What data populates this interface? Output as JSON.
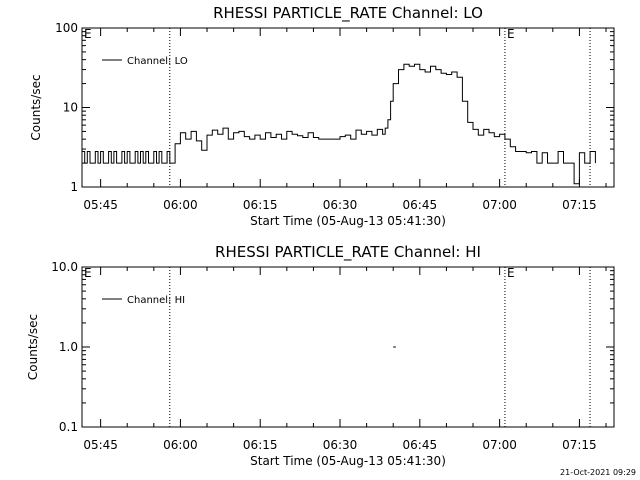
{
  "footer_stamp": "21-Oct-2021 09:29",
  "chart_data": [
    {
      "type": "line",
      "title": "RHESSI PARTICLE_RATE Channel: LO",
      "xlabel": "Start Time (05-Aug-13 05:41:30)",
      "ylabel": "Counts/sec",
      "yscale": "log",
      "ylim": [
        1,
        100
      ],
      "xlim": [
        "05:41:30",
        "07:21:30"
      ],
      "ytick_labels": [
        "1",
        "10",
        "100"
      ],
      "ytick_values": [
        1,
        10,
        100
      ],
      "xtick_labels": [
        "05:45",
        "06:00",
        "06:15",
        "06:30",
        "06:45",
        "07:00",
        "07:15"
      ],
      "legend": "Channel: LO",
      "legend_position": "top-left",
      "event_markers": [
        {
          "time": "05:58",
          "label": ""
        },
        {
          "time": "07:01",
          "label": "E"
        },
        {
          "time": "07:17",
          "label": ""
        }
      ],
      "axis_marker_label": "E",
      "series": [
        {
          "name": "Channel: LO",
          "x": [
            "05:41:30",
            "05:42:00",
            "05:42:30",
            "05:43:00",
            "05:43:30",
            "05:44:00",
            "05:44:30",
            "05:45:00",
            "05:45:30",
            "05:46:00",
            "05:46:30",
            "05:47:00",
            "05:47:30",
            "05:48:00",
            "05:48:30",
            "05:49:00",
            "05:49:30",
            "05:50:00",
            "05:50:30",
            "05:51:00",
            "05:51:30",
            "05:52:00",
            "05:52:30",
            "05:53:00",
            "05:53:30",
            "05:54:00",
            "05:54:30",
            "05:55:00",
            "05:55:30",
            "05:56:00",
            "05:56:30",
            "05:57:00",
            "05:57:30",
            "05:58:00",
            "05:59:00",
            "06:00:00",
            "06:01:00",
            "06:02:00",
            "06:03:00",
            "06:04:00",
            "06:05:00",
            "06:06:00",
            "06:07:00",
            "06:08:00",
            "06:09:00",
            "06:10:00",
            "06:11:00",
            "06:12:00",
            "06:13:00",
            "06:14:00",
            "06:15:00",
            "06:16:00",
            "06:17:00",
            "06:18:00",
            "06:19:00",
            "06:20:00",
            "06:21:00",
            "06:22:00",
            "06:23:00",
            "06:24:00",
            "06:25:00",
            "06:26:00",
            "06:27:00",
            "06:28:00",
            "06:29:00",
            "06:30:00",
            "06:31:00",
            "06:32:00",
            "06:33:00",
            "06:34:00",
            "06:35:00",
            "06:36:00",
            "06:37:00",
            "06:38:00",
            "06:38:30",
            "06:39:00",
            "06:39:30",
            "06:40:00",
            "06:41:00",
            "06:42:00",
            "06:43:00",
            "06:44:00",
            "06:45:00",
            "06:46:00",
            "06:47:00",
            "06:48:00",
            "06:49:00",
            "06:50:00",
            "06:51:00",
            "06:52:00",
            "06:53:00",
            "06:54:00",
            "06:55:00",
            "06:56:00",
            "06:57:00",
            "06:58:00",
            "06:59:00",
            "07:00:00",
            "07:01:00",
            "07:02:00",
            "07:03:00",
            "07:04:00",
            "07:05:00",
            "07:06:00",
            "07:07:00",
            "07:08:00",
            "07:09:00",
            "07:10:00",
            "07:11:00",
            "07:12:00",
            "07:13:00",
            "07:14:00",
            "07:15:00",
            "07:16:00",
            "07:17:00",
            "07:18:00"
          ],
          "values": [
            2.8,
            2.0,
            2.8,
            2.0,
            2.0,
            2.8,
            2.0,
            2.8,
            2.0,
            2.0,
            2.8,
            2.0,
            2.8,
            2.0,
            2.0,
            2.8,
            2.0,
            2.8,
            2.0,
            2.0,
            2.8,
            2.0,
            2.8,
            2.0,
            2.8,
            2.0,
            2.0,
            2.8,
            2.0,
            2.8,
            2.0,
            2.0,
            2.8,
            2.0,
            3.5,
            4.8,
            4.0,
            5.0,
            3.8,
            2.9,
            4.5,
            5.2,
            4.6,
            5.5,
            4.0,
            4.8,
            5.0,
            4.3,
            4.0,
            4.5,
            4.0,
            4.8,
            4.2,
            4.6,
            4.0,
            5.0,
            4.6,
            4.4,
            4.2,
            4.8,
            4.2,
            4.0,
            4.0,
            4.0,
            4.0,
            4.3,
            4.5,
            4.0,
            5.2,
            4.6,
            5.0,
            4.5,
            5.3,
            4.6,
            5.5,
            7.0,
            12.0,
            20.0,
            30.0,
            35.0,
            33.0,
            35.0,
            30.0,
            28.0,
            33.0,
            30.0,
            27.0,
            26.0,
            28.0,
            24.0,
            12.0,
            6.5,
            5.3,
            4.5,
            5.3,
            4.8,
            4.3,
            4.6,
            4.0,
            3.2,
            2.8,
            2.8,
            2.7,
            2.8,
            2.0,
            2.7,
            2.0,
            2.0,
            2.8,
            2.0,
            2.0,
            1.1,
            2.7,
            2.0,
            2.8,
            2.0
          ]
        }
      ]
    },
    {
      "type": "line",
      "title": "RHESSI PARTICLE_RATE Channel: HI",
      "xlabel": "Start Time (05-Aug-13 05:41:30)",
      "ylabel": "Counts/sec",
      "yscale": "log",
      "ylim": [
        0.1,
        10
      ],
      "xlim": [
        "05:41:30",
        "07:21:30"
      ],
      "ytick_labels": [
        "0.1",
        "1.0",
        "10.0"
      ],
      "ytick_values": [
        0.1,
        1,
        10
      ],
      "xtick_labels": [
        "05:45",
        "06:00",
        "06:15",
        "06:30",
        "06:45",
        "07:00",
        "07:15"
      ],
      "legend": "Channel: HI",
      "legend_position": "top-left",
      "event_markers": [
        {
          "time": "05:58",
          "label": ""
        },
        {
          "time": "07:01",
          "label": "E"
        },
        {
          "time": "07:17",
          "label": ""
        }
      ],
      "axis_marker_label": "E",
      "series": [
        {
          "name": "Channel: HI",
          "x": [
            "06:40:00",
            "06:40:30"
          ],
          "values": [
            1.0,
            1.0
          ]
        }
      ]
    }
  ]
}
